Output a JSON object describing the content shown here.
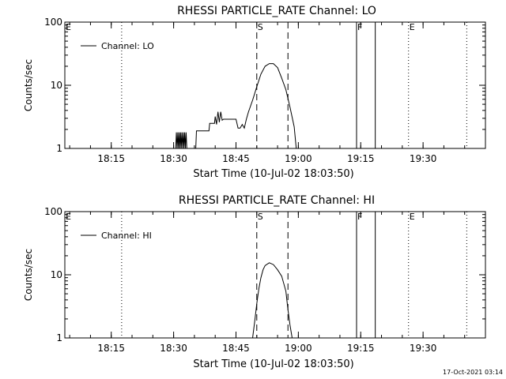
{
  "timestamp": "17-Oct-2021 03:14",
  "colors": {
    "background": "#ffffff",
    "foreground": "#000000"
  },
  "chart_data": [
    {
      "type": "line",
      "title": "RHESSI PARTICLE_RATE Channel: LO",
      "xlabel": "Start Time (10-Jul-02 18:03:50)",
      "ylabel": "Counts/sec",
      "y_scale": "log",
      "ylim": [
        1,
        100
      ],
      "xlim": [
        "18:03:50",
        "19:45:00"
      ],
      "y_ticks": [
        {
          "value": 1,
          "label": "1"
        },
        {
          "value": 10,
          "label": "10"
        },
        {
          "value": 100,
          "label": "100"
        }
      ],
      "x_ticks": [
        {
          "value": "18:15",
          "label": "18:15"
        },
        {
          "value": "18:30",
          "label": "18:30"
        },
        {
          "value": "18:45",
          "label": "18:45"
        },
        {
          "value": "19:00",
          "label": "19:00"
        },
        {
          "value": "19:15",
          "label": "19:15"
        },
        {
          "value": "19:30",
          "label": "19:30"
        }
      ],
      "legend": {
        "position": "top-left",
        "entries": [
          "Channel: LO"
        ]
      },
      "markers": [
        {
          "time": "18:03:50",
          "style": "none",
          "label": "E"
        },
        {
          "time": "18:17:30",
          "style": "dotted",
          "label": ""
        },
        {
          "time": "18:50:00",
          "style": "dashed",
          "label": "S"
        },
        {
          "time": "18:57:30",
          "style": "dashed",
          "label": ""
        },
        {
          "time": "19:14:00",
          "style": "solid",
          "label": "F"
        },
        {
          "time": "19:18:30",
          "style": "solid",
          "label": ""
        },
        {
          "time": "19:26:30",
          "style": "dotted",
          "label": "E"
        },
        {
          "time": "19:40:30",
          "style": "dotted",
          "label": ""
        }
      ],
      "series": [
        {
          "name": "Channel: LO",
          "points": [
            [
              "18:30:30",
              1
            ],
            [
              "18:30:40",
              1.8
            ],
            [
              "18:30:50",
              1
            ],
            [
              "18:31:00",
              1.8
            ],
            [
              "18:31:10",
              1
            ],
            [
              "18:31:20",
              1.8
            ],
            [
              "18:31:30",
              1
            ],
            [
              "18:31:40",
              1.8
            ],
            [
              "18:31:50",
              1
            ],
            [
              "18:32:00",
              1.8
            ],
            [
              "18:32:10",
              1
            ],
            [
              "18:32:20",
              1.8
            ],
            [
              "18:32:30",
              1
            ],
            [
              "18:32:40",
              1.8
            ],
            [
              "18:32:50",
              1
            ],
            [
              "18:33:00",
              1.8
            ],
            [
              "18:33:10",
              1
            ],
            [
              "18:35:20",
              1
            ],
            [
              "18:35:30",
              1.9
            ],
            [
              "18:38:30",
              1.9
            ],
            [
              "18:38:40",
              2.5
            ],
            [
              "18:39:50",
              2.5
            ],
            [
              "18:40:00",
              3.2
            ],
            [
              "18:40:20",
              2.4
            ],
            [
              "18:40:40",
              3.8
            ],
            [
              "18:41:00",
              2.6
            ],
            [
              "18:41:20",
              3.8
            ],
            [
              "18:41:40",
              2.8
            ],
            [
              "18:42:00",
              2.9
            ],
            [
              "18:44:30",
              2.9
            ],
            [
              "18:45:00",
              2.9
            ],
            [
              "18:45:30",
              2.1
            ],
            [
              "18:46:00",
              2.1
            ],
            [
              "18:46:30",
              2.4
            ],
            [
              "18:47:00",
              2.1
            ],
            [
              "18:47:30",
              2.9
            ],
            [
              "18:48:00",
              3.8
            ],
            [
              "18:49:00",
              5.8
            ],
            [
              "18:50:00",
              9.5
            ],
            [
              "18:51:00",
              15
            ],
            [
              "18:52:00",
              20
            ],
            [
              "18:53:00",
              22
            ],
            [
              "18:54:00",
              22
            ],
            [
              "18:55:00",
              19
            ],
            [
              "18:56:00",
              13
            ],
            [
              "18:57:00",
              8.5
            ],
            [
              "18:58:00",
              4.5
            ],
            [
              "18:59:00",
              2.2
            ],
            [
              "18:59:30",
              1
            ]
          ]
        }
      ]
    },
    {
      "type": "line",
      "title": "RHESSI PARTICLE_RATE Channel: HI",
      "xlabel": "Start Time (10-Jul-02 18:03:50)",
      "ylabel": "Counts/sec",
      "y_scale": "log",
      "ylim": [
        1,
        100
      ],
      "xlim": [
        "18:03:50",
        "19:45:00"
      ],
      "y_ticks": [
        {
          "value": 1,
          "label": "1"
        },
        {
          "value": 10,
          "label": "10"
        },
        {
          "value": 100,
          "label": "100"
        }
      ],
      "x_ticks": [
        {
          "value": "18:15",
          "label": "18:15"
        },
        {
          "value": "18:30",
          "label": "18:30"
        },
        {
          "value": "18:45",
          "label": "18:45"
        },
        {
          "value": "19:00",
          "label": "19:00"
        },
        {
          "value": "19:15",
          "label": "19:15"
        },
        {
          "value": "19:30",
          "label": "19:30"
        }
      ],
      "legend": {
        "position": "top-left",
        "entries": [
          "Channel: HI"
        ]
      },
      "markers": [
        {
          "time": "18:03:50",
          "style": "none",
          "label": "E"
        },
        {
          "time": "18:17:30",
          "style": "dotted",
          "label": ""
        },
        {
          "time": "18:50:00",
          "style": "dashed",
          "label": "S"
        },
        {
          "time": "18:57:30",
          "style": "dashed",
          "label": ""
        },
        {
          "time": "19:14:00",
          "style": "solid",
          "label": "F"
        },
        {
          "time": "19:18:30",
          "style": "solid",
          "label": ""
        },
        {
          "time": "19:26:30",
          "style": "dotted",
          "label": "E"
        },
        {
          "time": "19:40:30",
          "style": "dotted",
          "label": ""
        }
      ],
      "series": [
        {
          "name": "Channel: HI",
          "points": [
            [
              "18:49:00",
              1
            ],
            [
              "18:49:30",
              1.8
            ],
            [
              "18:50:00",
              3.5
            ],
            [
              "18:50:30",
              6
            ],
            [
              "18:51:00",
              9
            ],
            [
              "18:51:30",
              12
            ],
            [
              "18:52:00",
              14
            ],
            [
              "18:53:00",
              15.5
            ],
            [
              "18:54:00",
              14.5
            ],
            [
              "18:55:00",
              12
            ],
            [
              "18:56:00",
              9.5
            ],
            [
              "18:57:00",
              5.5
            ],
            [
              "18:57:30",
              2.8
            ],
            [
              "18:58:00",
              1.6
            ],
            [
              "18:58:30",
              1
            ]
          ]
        }
      ]
    }
  ]
}
